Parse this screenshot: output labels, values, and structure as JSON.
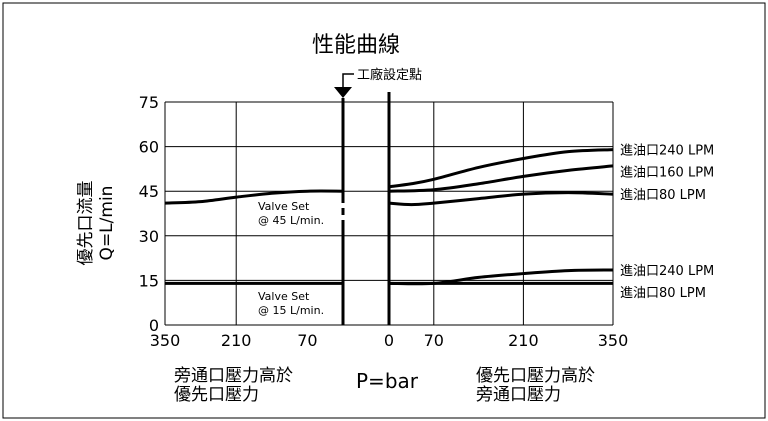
{
  "chart_data": {
    "type": "line",
    "title": "性能曲線",
    "ylabel": [
      "優先口流量",
      "Q=L/min"
    ],
    "xlabel": "P=bar",
    "ylim": [
      0,
      75
    ],
    "yticks": [
      "0",
      "15",
      "30",
      "45",
      "60",
      "75"
    ],
    "xticks_left": [
      "350",
      "210",
      "70"
    ],
    "xticks_right": [
      "0",
      "70",
      "210",
      "350"
    ],
    "factory_setting_label": "工廠設定點",
    "left_region_label": [
      "旁通口壓力高於",
      "優先口壓力"
    ],
    "right_region_label": [
      "優先口壓力高於",
      "旁通口壓力"
    ],
    "valve_set_45": [
      "Valve Set",
      "@ 45 L/min."
    ],
    "valve_set_15": [
      "Valve Set",
      "@ 15 L/min."
    ],
    "series": [
      {
        "name": "進油口240 LPM",
        "group": "45",
        "left": [
          [
            350,
            41
          ],
          [
            280,
            41.5
          ],
          [
            210,
            43
          ],
          [
            140,
            44.3
          ],
          [
            70,
            45
          ],
          [
            0,
            45
          ]
        ],
        "right": [
          [
            0,
            46.5
          ],
          [
            35,
            47.5
          ],
          [
            70,
            49
          ],
          [
            140,
            53
          ],
          [
            210,
            56
          ],
          [
            280,
            58.3
          ],
          [
            350,
            59
          ]
        ]
      },
      {
        "name": "進油口160 LPM",
        "group": "45",
        "left": [],
        "right": [
          [
            0,
            45
          ],
          [
            70,
            45.5
          ],
          [
            140,
            47.5
          ],
          [
            210,
            50
          ],
          [
            280,
            52
          ],
          [
            350,
            53.5
          ]
        ]
      },
      {
        "name": "進油口80 LPM",
        "group": "45",
        "left": [],
        "right": [
          [
            0,
            41
          ],
          [
            35,
            40.5
          ],
          [
            70,
            41
          ],
          [
            140,
            42.5
          ],
          [
            210,
            44
          ],
          [
            280,
            44.5
          ],
          [
            350,
            44
          ]
        ]
      },
      {
        "name": "進油口240 LPM",
        "group": "15",
        "left": [
          [
            350,
            14
          ],
          [
            0,
            14
          ]
        ],
        "right": [
          [
            0,
            14
          ],
          [
            70,
            14
          ],
          [
            140,
            16
          ],
          [
            210,
            17.3
          ],
          [
            280,
            18.3
          ],
          [
            350,
            18.5
          ]
        ]
      },
      {
        "name": "進油口80 LPM",
        "group": "15",
        "left": [],
        "right": [
          [
            0,
            14
          ],
          [
            350,
            14
          ]
        ]
      }
    ],
    "grid": true
  }
}
